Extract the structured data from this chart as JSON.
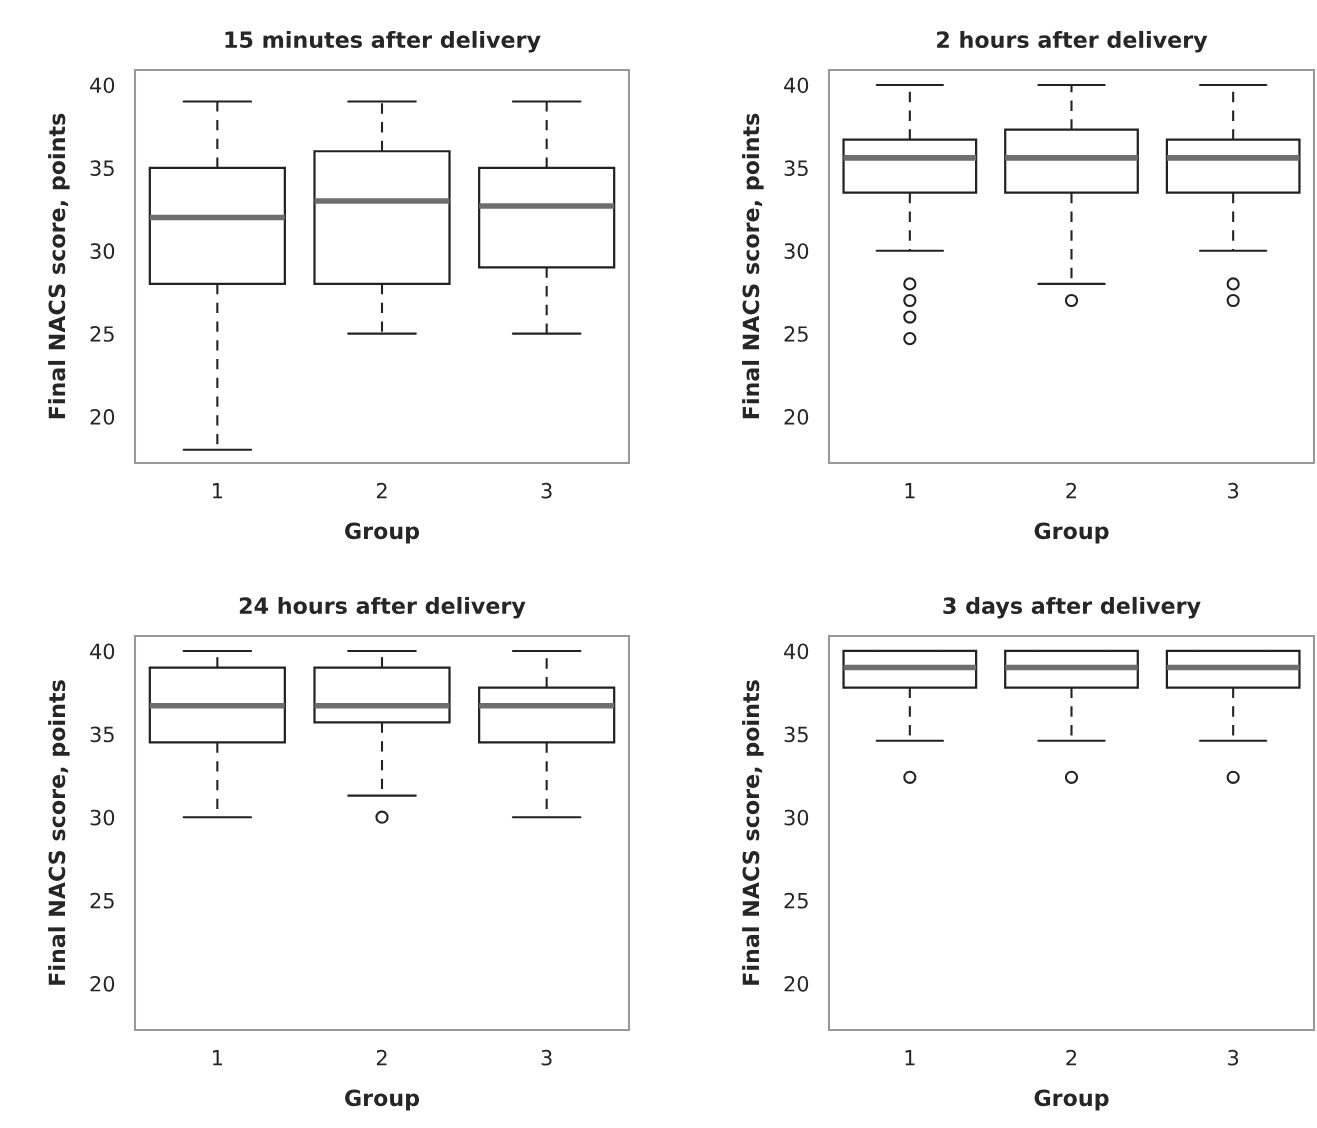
{
  "chart_data": [
    {
      "type": "box",
      "title": "15 minutes after delivery",
      "xlabel": "Group",
      "ylabel": "Final NACS score, points",
      "categories": [
        "1",
        "2",
        "3"
      ],
      "ylim": [
        17.2,
        40.9
      ],
      "yticks": [
        20,
        25,
        30,
        35,
        40
      ],
      "boxes": [
        {
          "low": 18,
          "q1": 28,
          "median": 32,
          "q3": 35,
          "high": 39
        },
        {
          "low": 25,
          "q1": 28,
          "median": 33,
          "q3": 36,
          "high": 39
        },
        {
          "low": 25,
          "q1": 29,
          "median": 32.7,
          "q3": 35,
          "high": 39
        }
      ]
    },
    {
      "type": "box",
      "title": "2 hours after delivery",
      "xlabel": "Group",
      "ylabel": "Final NACS score, points",
      "categories": [
        "1",
        "2",
        "3"
      ],
      "ylim": [
        17.2,
        40.9
      ],
      "yticks": [
        20,
        25,
        30,
        35,
        40
      ],
      "boxes": [
        {
          "low": 30,
          "q1": 33.5,
          "median": 35.6,
          "q3": 36.7,
          "high": 40,
          "outliers": [
            28,
            27,
            26,
            24.7
          ]
        },
        {
          "low": 28,
          "q1": 33.5,
          "median": 35.6,
          "q3": 37.3,
          "high": 40,
          "outliers": [
            27
          ]
        },
        {
          "low": 30,
          "q1": 33.5,
          "median": 35.6,
          "q3": 36.7,
          "high": 40,
          "outliers": [
            28,
            27
          ]
        }
      ]
    },
    {
      "type": "box",
      "title": "24 hours after delivery",
      "xlabel": "Group",
      "ylabel": "Final NACS score, points",
      "categories": [
        "1",
        "2",
        "3"
      ],
      "ylim": [
        17.2,
        40.9
      ],
      "yticks": [
        20,
        25,
        30,
        35,
        40
      ],
      "boxes": [
        {
          "low": 30,
          "q1": 34.5,
          "median": 36.7,
          "q3": 39,
          "high": 40
        },
        {
          "low": 31.3,
          "q1": 35.7,
          "median": 36.7,
          "q3": 39,
          "high": 40,
          "outliers": [
            30
          ]
        },
        {
          "low": 30,
          "q1": 34.5,
          "median": 36.7,
          "q3": 37.8,
          "high": 40
        }
      ]
    },
    {
      "type": "box",
      "title": "3 days after delivery",
      "xlabel": "Group",
      "ylabel": "Final NACS score, points",
      "categories": [
        "1",
        "2",
        "3"
      ],
      "ylim": [
        17.2,
        40.9
      ],
      "yticks": [
        20,
        25,
        30,
        35,
        40
      ],
      "boxes": [
        {
          "low": 34.6,
          "q1": 37.8,
          "median": 39,
          "q3": 40,
          "high": 40,
          "outliers": [
            32.4
          ]
        },
        {
          "low": 34.6,
          "q1": 37.8,
          "median": 39,
          "q3": 40,
          "high": 40,
          "outliers": [
            32.4
          ]
        },
        {
          "low": 34.6,
          "q1": 37.8,
          "median": 39,
          "q3": 40,
          "high": 40,
          "outliers": [
            32.4
          ]
        }
      ]
    }
  ]
}
